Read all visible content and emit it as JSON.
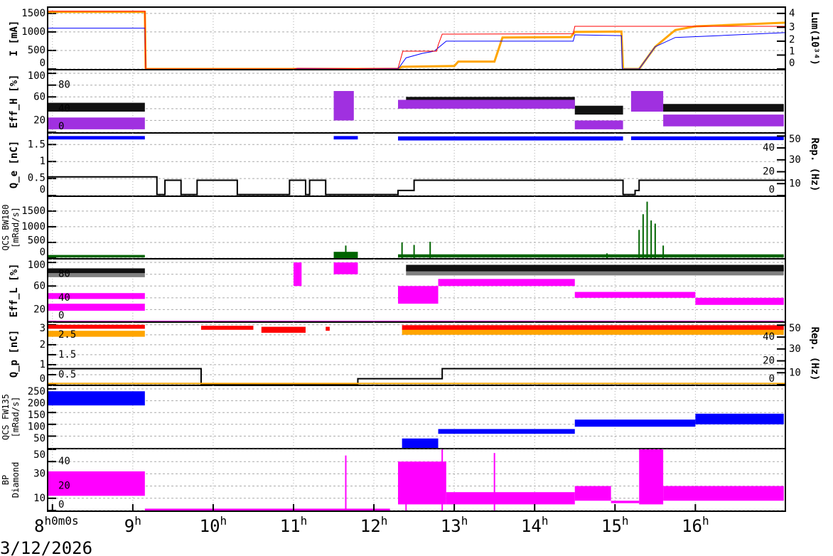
{
  "chart_data": {
    "type": "line",
    "x_axis": {
      "range_hours": [
        7.94,
        17.12
      ],
      "ticks": [
        {
          "h": 8,
          "label": "8",
          "sup": "h0m0s"
        },
        {
          "h": 9,
          "label": "9",
          "sup": "h"
        },
        {
          "h": 10,
          "label": "10",
          "sup": "h"
        },
        {
          "h": 11,
          "label": "11",
          "sup": "h"
        },
        {
          "h": 12,
          "label": "12",
          "sup": "h"
        },
        {
          "h": 13,
          "label": "13",
          "sup": "h"
        },
        {
          "h": 14,
          "label": "14",
          "sup": "h"
        },
        {
          "h": 15,
          "label": "15",
          "sup": "h"
        },
        {
          "h": 16,
          "label": "16",
          "sup": "h"
        }
      ],
      "date": "3/12/2026"
    },
    "panels": [
      {
        "ylabel": "I [mA]",
        "ylim": [
          0,
          1650
        ],
        "ticks": [
          0,
          500,
          1000,
          1500
        ],
        "right": {
          "label": "Lum(10³⁴)",
          "ticks": [
            0,
            1,
            2,
            3,
            4
          ],
          "lim": [
            0,
            4.4
          ]
        },
        "lines": [
          {
            "color": "#ffa500",
            "w": 3,
            "pts": [
              [
                7.94,
                1540
              ],
              [
                9.15,
                1540
              ],
              [
                9.16,
                0
              ],
              [
                12.3,
                0
              ],
              [
                12.35,
                60
              ],
              [
                13.0,
                80
              ],
              [
                13.05,
                200
              ],
              [
                13.5,
                200
              ],
              [
                13.6,
                850
              ],
              [
                14.45,
                860
              ],
              [
                14.5,
                1000
              ],
              [
                15.08,
                1010
              ],
              [
                15.1,
                0
              ],
              [
                15.3,
                0
              ],
              [
                15.5,
                600
              ],
              [
                15.75,
                1050
              ],
              [
                16.0,
                1150
              ],
              [
                17.12,
                1250
              ]
            ]
          },
          {
            "color": "#0000ff",
            "w": 1,
            "pts": [
              [
                7.94,
                1100
              ],
              [
                9.15,
                1100
              ],
              [
                9.16,
                0
              ],
              [
                12.3,
                0
              ],
              [
                12.4,
                300
              ],
              [
                12.6,
                420
              ],
              [
                12.75,
                480
              ],
              [
                12.9,
                750
              ],
              [
                14.48,
                750
              ],
              [
                14.5,
                920
              ],
              [
                15.08,
                900
              ],
              [
                15.09,
                0
              ],
              [
                15.3,
                0
              ],
              [
                15.5,
                600
              ],
              [
                15.75,
                850
              ],
              [
                16.3,
                900
              ],
              [
                17.12,
                980
              ]
            ]
          },
          {
            "color": "#ff0000",
            "w": 1,
            "pts": [
              [
                7.94,
                1560
              ],
              [
                9.15,
                1560
              ],
              [
                9.16,
                0
              ],
              [
                11.0,
                0
              ],
              [
                11.05,
                20
              ],
              [
                11.8,
                10
              ],
              [
                12.3,
                20
              ],
              [
                12.36,
                480
              ],
              [
                12.78,
                480
              ],
              [
                12.8,
                650
              ],
              [
                12.85,
                940
              ],
              [
                14.48,
                950
              ],
              [
                14.5,
                1150
              ],
              [
                17.12,
                1150
              ]
            ]
          }
        ],
        "bands": []
      },
      {
        "ylabel": "Eff_H [%]",
        "ylim": [
          0,
          105
        ],
        "ticks": [
          0,
          20,
          40,
          60,
          80,
          100
        ],
        "bands": [
          {
            "color": "#111111",
            "segs": [
              [
                7.94,
                9.15,
                35,
                50
              ],
              [
                12.4,
                14.5,
                45,
                60
              ],
              [
                14.5,
                15.1,
                30,
                45
              ],
              [
                15.5,
                17.1,
                35,
                48
              ]
            ]
          },
          {
            "color": "#a030e0",
            "segs": [
              [
                7.94,
                9.15,
                5,
                25
              ],
              [
                11.5,
                11.75,
                20,
                70
              ],
              [
                12.3,
                14.5,
                40,
                55
              ],
              [
                14.5,
                15.1,
                5,
                20
              ],
              [
                15.2,
                15.6,
                35,
                70
              ],
              [
                15.6,
                17.1,
                10,
                30
              ]
            ]
          }
        ],
        "lines": []
      },
      {
        "ylabel": "Q_e [nC]",
        "ylim": [
          0,
          1.82
        ],
        "ticks": [
          0,
          0.5,
          1,
          1.5
        ],
        "right": {
          "label": "Rep. (Hz)",
          "ticks": [
            0,
            10,
            20,
            30,
            40,
            50
          ],
          "lim": [
            0,
            52
          ]
        },
        "bands": [
          {
            "color": "#0000ff",
            "segs": [
              [
                7.94,
                9.15,
                1.65,
                1.75
              ],
              [
                11.5,
                11.8,
                1.65,
                1.75
              ],
              [
                12.3,
                15.1,
                1.62,
                1.74
              ],
              [
                15.2,
                17.1,
                1.63,
                1.74
              ]
            ]
          }
        ],
        "lines": [
          {
            "color": "#000000",
            "w": 2,
            "pts": [
              [
                7.94,
                0.55
              ],
              [
                9.3,
                0.55
              ],
              [
                9.3,
                0.03
              ],
              [
                9.4,
                0.03
              ],
              [
                9.4,
                0.45
              ],
              [
                9.6,
                0.45
              ],
              [
                9.6,
                0.03
              ],
              [
                9.8,
                0.03
              ],
              [
                9.8,
                0.45
              ],
              [
                10.3,
                0.45
              ],
              [
                10.3,
                0.03
              ],
              [
                10.95,
                0.03
              ],
              [
                10.95,
                0.45
              ],
              [
                11.15,
                0.45
              ],
              [
                11.15,
                0.03
              ],
              [
                11.2,
                0.03
              ],
              [
                11.2,
                0.45
              ],
              [
                11.4,
                0.45
              ],
              [
                11.4,
                0.03
              ],
              [
                12.3,
                0.03
              ],
              [
                12.3,
                0.15
              ],
              [
                12.5,
                0.15
              ],
              [
                12.5,
                0.45
              ],
              [
                15.1,
                0.45
              ],
              [
                15.1,
                0.03
              ],
              [
                15.25,
                0.03
              ],
              [
                15.25,
                0.15
              ],
              [
                15.3,
                0.15
              ],
              [
                15.3,
                0.45
              ],
              [
                17.12,
                0.45
              ]
            ]
          }
        ]
      },
      {
        "ylabel": "QCS BW180 [mRad/s]",
        "ylim": [
          0,
          1950
        ],
        "ticks": [
          0,
          500,
          1000,
          1500
        ],
        "bands": [
          {
            "color": "#006400",
            "segs": [
              [
                7.94,
                9.15,
                20,
                100
              ],
              [
                11.5,
                11.8,
                0,
                200
              ],
              [
                12.3,
                17.1,
                20,
                120
              ]
            ]
          }
        ],
        "spikes": {
          "color": "#006400",
          "pts": [
            [
              11.65,
              400
            ],
            [
              12.35,
              500
            ],
            [
              12.5,
              420
            ],
            [
              12.7,
              520
            ],
            [
              14.9,
              150
            ],
            [
              15.3,
              900
            ],
            [
              15.35,
              1400
            ],
            [
              15.4,
              1800
            ],
            [
              15.45,
              1200
            ],
            [
              15.5,
              1100
            ],
            [
              15.6,
              400
            ]
          ]
        },
        "lines": []
      },
      {
        "ylabel": "Eff_L [%]",
        "ylim": [
          0,
          105
        ],
        "ticks": [
          0,
          20,
          40,
          60,
          80,
          100
        ],
        "bands": [
          {
            "color": "#808080",
            "segs": [
              [
                7.94,
                9.15,
                75,
                85
              ],
              [
                12.4,
                17.1,
                78,
                92
              ]
            ]
          },
          {
            "color": "#111111",
            "segs": [
              [
                7.94,
                9.15,
                82,
                90
              ],
              [
                12.4,
                17.1,
                85,
                96
              ]
            ]
          },
          {
            "color": "#ff00ff",
            "segs": [
              [
                7.94,
                9.15,
                18,
                30
              ],
              [
                7.94,
                9.15,
                38,
                48
              ],
              [
                11.0,
                11.1,
                60,
                100
              ],
              [
                11.5,
                11.8,
                80,
                100
              ],
              [
                12.3,
                12.8,
                30,
                60
              ],
              [
                12.8,
                14.5,
                60,
                72
              ],
              [
                14.5,
                16,
                40,
                50
              ],
              [
                16,
                17.1,
                28,
                40
              ],
              [
                7.94,
                17.1,
                0,
                1
              ]
            ]
          }
        ],
        "lines": []
      },
      {
        "ylabel": "Q_p [nC]",
        "ylim": [
          0,
          3.1
        ],
        "ticks": [
          0,
          0.5,
          1,
          1.5,
          2,
          2.5,
          3
        ],
        "right": {
          "label": "Rep. (Hz)",
          "ticks": [
            0,
            10,
            20,
            30,
            40,
            50
          ],
          "lim": [
            0,
            52
          ]
        },
        "bands": [
          {
            "color": "#ffa500",
            "segs": [
              [
                7.94,
                9.15,
                2.4,
                2.7
              ],
              [
                12.35,
                17.1,
                2.5,
                2.8
              ]
            ]
          },
          {
            "color": "#ff0000",
            "segs": [
              [
                7.94,
                9.15,
                2.8,
                3.0
              ],
              [
                9.85,
                10.5,
                2.75,
                2.95
              ],
              [
                10.6,
                11.15,
                2.6,
                2.9
              ],
              [
                11.4,
                11.45,
                2.7,
                2.9
              ],
              [
                12.35,
                17.1,
                2.75,
                2.98
              ]
            ]
          }
        ],
        "lines": [
          {
            "color": "#000000",
            "w": 2,
            "pts": [
              [
                7.94,
                0.8
              ],
              [
                9.85,
                0.8
              ],
              [
                9.85,
                0.02
              ],
              [
                11.8,
                0.02
              ],
              [
                11.8,
                0.3
              ],
              [
                12.85,
                0.3
              ],
              [
                12.85,
                0.8
              ],
              [
                17.12,
                0.8
              ]
            ]
          },
          {
            "color": "#ffa500",
            "w": 2,
            "pts": [
              [
                7.94,
                0.06
              ],
              [
                17.12,
                0.06
              ]
            ]
          }
        ]
      },
      {
        "ylabel": "QCS FW135 [mRad/s]",
        "ylim": [
          0,
          262
        ],
        "ticks": [
          50,
          100,
          150,
          200,
          250
        ],
        "bands": [
          {
            "color": "#0000ff",
            "segs": [
              [
                7.94,
                9.15,
                180,
                240
              ],
              [
                12.35,
                12.8,
                0,
                40
              ],
              [
                12.8,
                14.5,
                60,
                80
              ],
              [
                14.5,
                16,
                90,
                120
              ],
              [
                16,
                17.1,
                100,
                145
              ]
            ]
          }
        ],
        "lines": []
      },
      {
        "ylabel": "BP Diamond",
        "ylim": [
          0,
          50
        ],
        "ticks": [
          0,
          10,
          20,
          30,
          40,
          50
        ],
        "bands": [
          {
            "color": "#ff00ff",
            "segs": [
              [
                7.94,
                9.15,
                12,
                32
              ],
              [
                9.15,
                12.2,
                0,
                1.5
              ],
              [
                12.3,
                12.9,
                5,
                40
              ],
              [
                12.9,
                14.5,
                5,
                15
              ],
              [
                14.5,
                14.95,
                8,
                20
              ],
              [
                14.95,
                15.3,
                6,
                8
              ],
              [
                15.3,
                15.6,
                5,
                50
              ],
              [
                15.6,
                17.1,
                8,
                20
              ]
            ]
          }
        ],
        "spikes": {
          "color": "#ff00ff",
          "pts": [
            [
              11.65,
              45
            ],
            [
              12.4,
              40
            ],
            [
              12.85,
              50
            ],
            [
              13.5,
              47
            ]
          ]
        },
        "lines": []
      }
    ]
  }
}
